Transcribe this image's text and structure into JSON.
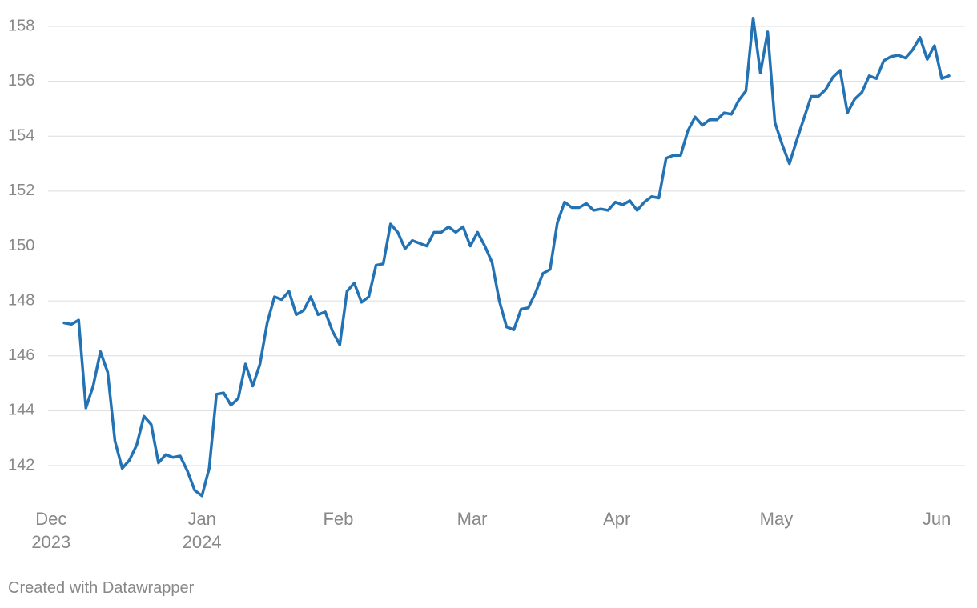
{
  "chart_data": {
    "type": "line",
    "color": "#2272b4",
    "grid": true,
    "values": [
      147.2,
      147.15,
      147.3,
      144.1,
      144.9,
      146.15,
      145.4,
      142.9,
      141.9,
      142.2,
      142.75,
      143.8,
      143.5,
      142.1,
      142.4,
      142.3,
      142.35,
      141.8,
      141.1,
      140.9,
      141.9,
      144.6,
      144.65,
      144.2,
      144.45,
      145.7,
      144.9,
      145.7,
      147.2,
      148.15,
      148.05,
      148.35,
      147.5,
      147.65,
      148.15,
      147.5,
      147.6,
      146.9,
      146.4,
      148.35,
      148.65,
      147.95,
      148.15,
      149.3,
      149.35,
      150.8,
      150.5,
      149.9,
      150.2,
      150.1,
      150.0,
      150.5,
      150.5,
      150.7,
      150.5,
      150.7,
      150.0,
      150.5,
      150.0,
      149.4,
      148.0,
      147.05,
      146.95,
      147.7,
      147.75,
      148.3,
      149.0,
      149.15,
      150.85,
      151.6,
      151.4,
      151.4,
      151.55,
      151.3,
      151.35,
      151.3,
      151.6,
      151.5,
      151.65,
      151.3,
      151.6,
      151.8,
      151.75,
      153.2,
      153.3,
      153.3,
      154.2,
      154.7,
      154.4,
      154.6,
      154.6,
      154.85,
      154.8,
      155.3,
      155.65,
      158.3,
      156.3,
      157.8,
      154.5,
      153.7,
      153.0,
      153.85,
      154.65,
      155.45,
      155.45,
      155.7,
      156.15,
      156.4,
      154.85,
      155.35,
      155.6,
      156.2,
      156.1,
      156.75,
      156.9,
      156.95,
      156.85,
      157.15,
      157.6,
      156.8,
      157.3,
      156.1,
      156.2
    ],
    "xlim": [
      -2,
      122
    ],
    "xticks": [
      {
        "value": -1.8,
        "label": "Dec 2023"
      },
      {
        "value": 19,
        "label": "Jan 2024"
      },
      {
        "value": 37.8,
        "label": "Feb"
      },
      {
        "value": 56.25,
        "label": "Mar"
      },
      {
        "value": 76.2,
        "label": "Apr"
      },
      {
        "value": 98.2,
        "label": "May"
      },
      {
        "value": 120.3,
        "label": "Jun"
      }
    ],
    "ylim": [
      140.8,
      158.4
    ],
    "yticks": [
      142,
      144,
      146,
      148,
      150,
      152,
      154,
      156,
      158
    ],
    "credit": "Created with Datawrapper"
  }
}
